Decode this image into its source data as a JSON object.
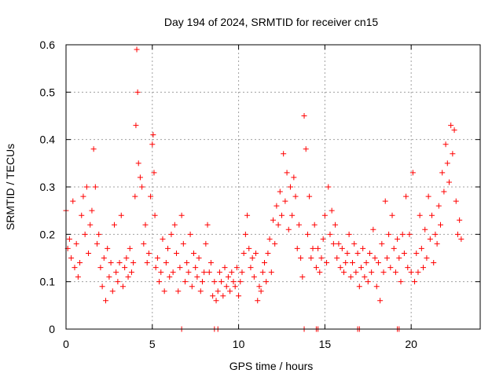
{
  "chart_data": {
    "type": "scatter",
    "title": "Day 194 of 2024, SRMTID for receiver cn15",
    "xlabel": "GPS time / hours",
    "ylabel": "SRMTID / TECUs",
    "xlim": [
      0,
      24
    ],
    "ylim": [
      0,
      0.6
    ],
    "xticks": [
      0,
      5,
      10,
      15,
      20
    ],
    "xtick_labels": [
      "0",
      "5",
      "10",
      "15",
      "20"
    ],
    "yticks": [
      0,
      0.1,
      0.2,
      0.3,
      0.4,
      0.5,
      0.6
    ],
    "ytick_labels": [
      "0",
      "0.1",
      "0.2",
      "0.3",
      "0.4",
      "0.5",
      "0.6"
    ],
    "grid": true,
    "marker": "+",
    "color": "#ff0000",
    "series": [
      {
        "name": "SRMTID",
        "x": [
          0.0,
          0.1,
          0.2,
          0.3,
          0.4,
          0.5,
          0.6,
          0.7,
          0.8,
          0.9,
          1.0,
          1.1,
          1.2,
          1.3,
          1.4,
          1.5,
          1.6,
          1.7,
          1.8,
          1.9,
          2.0,
          2.1,
          2.2,
          2.3,
          2.4,
          2.5,
          2.6,
          2.7,
          2.8,
          2.9,
          3.0,
          3.1,
          3.2,
          3.3,
          3.4,
          3.5,
          3.6,
          3.7,
          3.8,
          3.9,
          4.0,
          4.05,
          4.1,
          4.15,
          4.2,
          4.3,
          4.4,
          4.5,
          4.6,
          4.7,
          4.8,
          4.9,
          5.0,
          5.05,
          5.1,
          5.15,
          5.2,
          5.3,
          5.4,
          5.5,
          5.6,
          5.7,
          5.8,
          5.9,
          6.0,
          6.1,
          6.2,
          6.3,
          6.4,
          6.5,
          6.6,
          6.7,
          6.8,
          6.9,
          7.0,
          7.1,
          7.2,
          7.3,
          7.4,
          7.5,
          7.6,
          7.7,
          7.8,
          7.9,
          8.0,
          8.1,
          8.2,
          8.3,
          8.4,
          8.5,
          8.6,
          8.7,
          8.8,
          8.9,
          9.0,
          9.1,
          9.2,
          9.3,
          9.4,
          9.5,
          9.6,
          9.7,
          9.8,
          9.9,
          10.0,
          10.1,
          10.2,
          10.3,
          10.4,
          10.5,
          10.6,
          10.7,
          10.8,
          10.9,
          11.0,
          11.1,
          11.2,
          11.3,
          11.4,
          11.5,
          11.6,
          11.7,
          11.8,
          11.9,
          12.0,
          12.1,
          12.2,
          12.3,
          12.4,
          12.5,
          12.6,
          12.7,
          12.8,
          12.9,
          13.0,
          13.1,
          13.2,
          13.3,
          13.4,
          13.5,
          13.6,
          13.7,
          13.8,
          13.9,
          14.0,
          14.1,
          14.2,
          14.3,
          14.4,
          14.5,
          14.6,
          14.7,
          14.8,
          14.9,
          15.0,
          15.1,
          15.2,
          15.3,
          15.4,
          15.5,
          15.6,
          15.7,
          15.8,
          15.9,
          16.0,
          16.1,
          16.2,
          16.3,
          16.4,
          16.5,
          16.6,
          16.7,
          16.8,
          16.9,
          17.0,
          17.1,
          17.2,
          17.3,
          17.4,
          17.5,
          17.6,
          17.7,
          17.8,
          17.9,
          18.0,
          18.1,
          18.2,
          18.3,
          18.4,
          18.5,
          18.6,
          18.7,
          18.8,
          18.9,
          19.0,
          19.1,
          19.2,
          19.3,
          19.4,
          19.5,
          19.6,
          19.7,
          19.8,
          19.9,
          20.0,
          20.1,
          20.2,
          20.3,
          20.4,
          20.5,
          20.6,
          20.7,
          20.8,
          20.9,
          21.0,
          21.1,
          21.2,
          21.3,
          21.4,
          21.5,
          21.6,
          21.7,
          21.8,
          21.9,
          22.0,
          22.1,
          22.2,
          22.3,
          22.4,
          22.5,
          22.6,
          22.7,
          22.8,
          22.9,
          6.7,
          8.6,
          8.8,
          13.8,
          14.5,
          14.6,
          16.9,
          17.0,
          19.2,
          19.3
        ],
        "y": [
          0.25,
          0.17,
          0.19,
          0.15,
          0.27,
          0.13,
          0.18,
          0.11,
          0.14,
          0.24,
          0.28,
          0.2,
          0.3,
          0.16,
          0.22,
          0.25,
          0.38,
          0.3,
          0.18,
          0.2,
          0.13,
          0.09,
          0.15,
          0.06,
          0.17,
          0.11,
          0.14,
          0.08,
          0.22,
          0.12,
          0.1,
          0.14,
          0.24,
          0.09,
          0.13,
          0.15,
          0.11,
          0.17,
          0.12,
          0.14,
          0.28,
          0.43,
          0.59,
          0.5,
          0.35,
          0.32,
          0.3,
          0.18,
          0.22,
          0.14,
          0.16,
          0.28,
          0.39,
          0.41,
          0.33,
          0.24,
          0.13,
          0.15,
          0.1,
          0.12,
          0.19,
          0.08,
          0.14,
          0.17,
          0.11,
          0.2,
          0.12,
          0.22,
          0.16,
          0.08,
          0.13,
          0.24,
          0.18,
          0.1,
          0.14,
          0.12,
          0.2,
          0.09,
          0.16,
          0.13,
          0.11,
          0.15,
          0.08,
          0.1,
          0.12,
          0.18,
          0.22,
          0.12,
          0.14,
          0.07,
          0.1,
          0.06,
          0.08,
          0.12,
          0.1,
          0.07,
          0.13,
          0.09,
          0.11,
          0.08,
          0.12,
          0.1,
          0.09,
          0.13,
          0.07,
          0.1,
          0.12,
          0.16,
          0.2,
          0.24,
          0.17,
          0.13,
          0.15,
          0.11,
          0.16,
          0.06,
          0.09,
          0.08,
          0.12,
          0.14,
          0.1,
          0.16,
          0.19,
          0.12,
          0.23,
          0.18,
          0.26,
          0.22,
          0.29,
          0.24,
          0.37,
          0.27,
          0.33,
          0.21,
          0.3,
          0.24,
          0.32,
          0.28,
          0.17,
          0.22,
          0.15,
          0.11,
          0.45,
          0.38,
          0.2,
          0.28,
          0.15,
          0.17,
          0.22,
          0.13,
          0.17,
          0.12,
          0.15,
          0.19,
          0.24,
          0.14,
          0.3,
          0.2,
          0.25,
          0.18,
          0.22,
          0.15,
          0.18,
          0.13,
          0.17,
          0.12,
          0.14,
          0.16,
          0.2,
          0.11,
          0.14,
          0.18,
          0.12,
          0.16,
          0.09,
          0.13,
          0.17,
          0.11,
          0.14,
          0.1,
          0.16,
          0.12,
          0.21,
          0.15,
          0.09,
          0.14,
          0.06,
          0.18,
          0.12,
          0.27,
          0.15,
          0.2,
          0.13,
          0.24,
          0.17,
          0.12,
          0.19,
          0.15,
          0.1,
          0.2,
          0.16,
          0.28,
          0.13,
          0.2,
          0.12,
          0.33,
          0.1,
          0.16,
          0.12,
          0.24,
          0.17,
          0.13,
          0.21,
          0.15,
          0.28,
          0.19,
          0.24,
          0.14,
          0.2,
          0.18,
          0.26,
          0.22,
          0.33,
          0.29,
          0.39,
          0.35,
          0.31,
          0.43,
          0.37,
          0.42,
          0.27,
          0.2,
          0.23,
          0.19,
          0,
          0,
          0,
          0,
          0,
          0,
          0,
          0,
          0,
          0
        ]
      }
    ]
  }
}
